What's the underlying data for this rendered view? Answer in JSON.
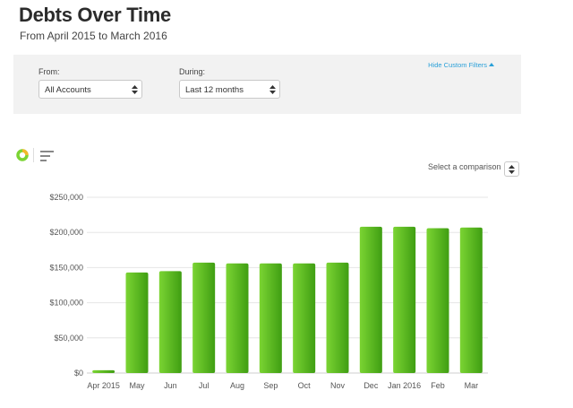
{
  "header": {
    "title": "Debts Over Time",
    "subtitle": "From April 2015 to March 2016"
  },
  "filters": {
    "from_label": "From:",
    "from_value": "All Accounts",
    "during_label": "During:",
    "during_value": "Last 12 months",
    "hide_link": "Hide Custom Filters"
  },
  "toolbar": {
    "comparison_label": "Select a comparison",
    "icons": [
      "donut-chart-icon",
      "bar-chart-icon"
    ]
  },
  "colors": {
    "bar_light": "#7bd433",
    "bar_dark": "#3f9e12",
    "link": "#2aa0d8"
  },
  "chart_data": {
    "type": "bar",
    "categories": [
      "Apr 2015",
      "May",
      "Jun",
      "Jul",
      "Aug",
      "Sep",
      "Oct",
      "Nov",
      "Dec",
      "Jan 2016",
      "Feb",
      "Mar"
    ],
    "values": [
      4000,
      143000,
      145000,
      157000,
      156000,
      156000,
      156000,
      157000,
      208000,
      208000,
      206000,
      207000
    ],
    "ylim": [
      0,
      250000
    ],
    "yticks": [
      "$0",
      "$50,000",
      "$100,000",
      "$150,000",
      "$200,000",
      "$250,000"
    ],
    "grid": true,
    "title": "",
    "xlabel": "",
    "ylabel": ""
  }
}
